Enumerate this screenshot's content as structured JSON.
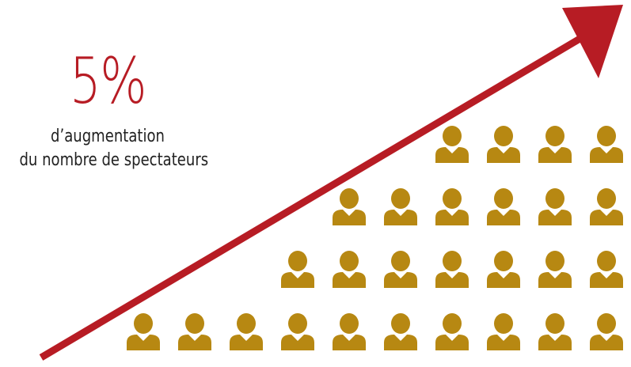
{
  "stat": {
    "value": "5%",
    "caption_line1": "d’augmentation",
    "caption_line2": "du nombre de spectateurs"
  },
  "colors": {
    "arrow": "#b71c24",
    "people": "#b78812",
    "value_text": "#b71c24"
  },
  "icons": {
    "arrow": "trend-up-arrow-icon",
    "person": "person-icon"
  },
  "crowd": {
    "rows_bottom_to_top": [
      10,
      7,
      6,
      4
    ]
  }
}
